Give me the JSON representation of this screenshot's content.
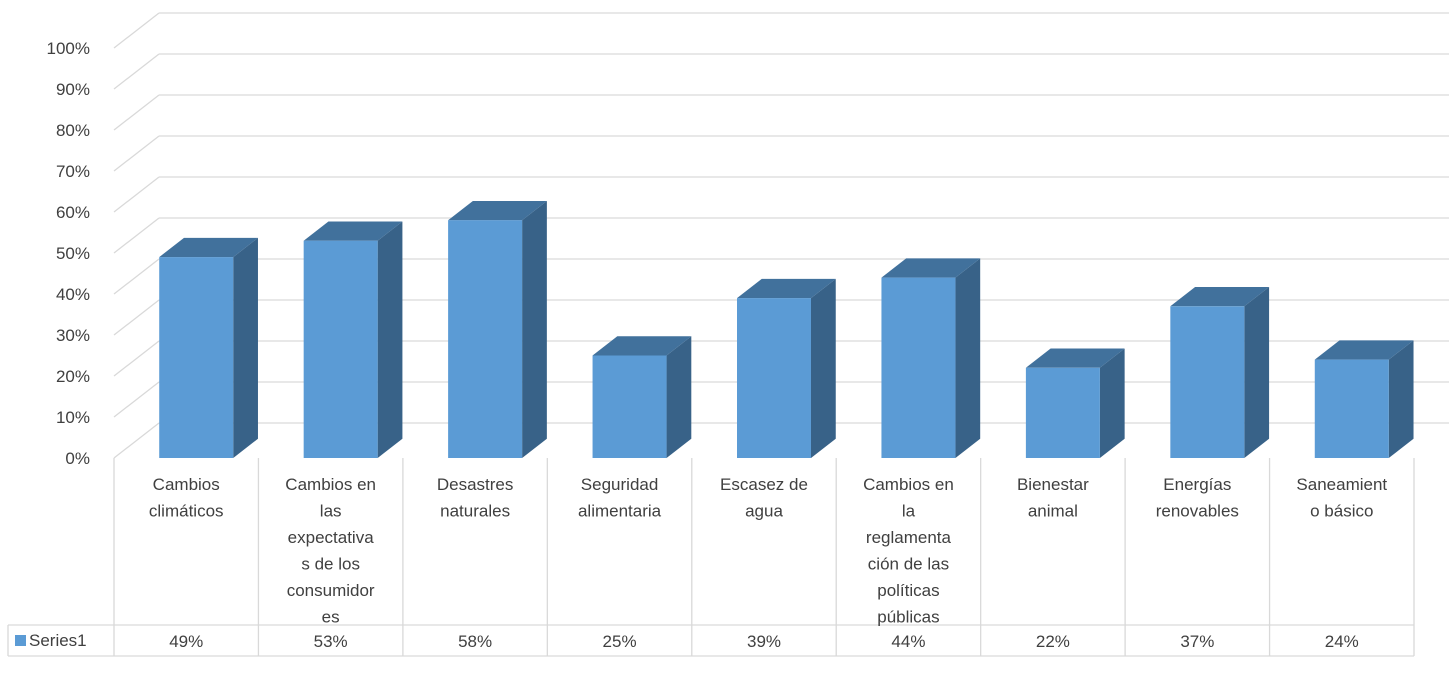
{
  "chart_data": {
    "type": "bar",
    "style": "3d-column-with-data-table",
    "categories": [
      "Cambios climáticos",
      "Cambios en las expectativas de los consumidores",
      "Desastres naturales",
      "Seguridad alimentaria",
      "Escasez de agua",
      "Cambios en la reglamentación de las políticas públicas",
      "Bienestar animal",
      "Energías renovables",
      "Saneamiento básico"
    ],
    "category_label_lines": [
      [
        "Cambios",
        "climáticos"
      ],
      [
        "Cambios en",
        "las",
        "expectativa",
        "s de los",
        "consumidor",
        "es"
      ],
      [
        "Desastres",
        "naturales"
      ],
      [
        "Seguridad",
        "alimentaria"
      ],
      [
        "Escasez de",
        "agua"
      ],
      [
        "Cambios en",
        "la",
        "reglamenta",
        "ción de las",
        "políticas",
        "públicas"
      ],
      [
        "Bienestar",
        "animal"
      ],
      [
        "Energías",
        "renovables"
      ],
      [
        "Saneamient",
        "o básico"
      ]
    ],
    "series": [
      {
        "name": "Series1",
        "values": [
          49,
          53,
          58,
          25,
          39,
          44,
          22,
          37,
          24
        ],
        "labels": [
          "49%",
          "53%",
          "58%",
          "25%",
          "39%",
          "44%",
          "22%",
          "37%",
          "24%"
        ],
        "color": "#5b9bd5"
      }
    ],
    "ylim": [
      0,
      100
    ],
    "yticks": [
      "0%",
      "10%",
      "20%",
      "30%",
      "40%",
      "50%",
      "60%",
      "70%",
      "80%",
      "90%",
      "100%"
    ],
    "grid": true,
    "legend": "data-table-left",
    "colors": {
      "front": "#5b9bd5",
      "side": "#386288",
      "top": "#41719c",
      "grid": "#d9d9d9",
      "text": "#404040"
    }
  }
}
